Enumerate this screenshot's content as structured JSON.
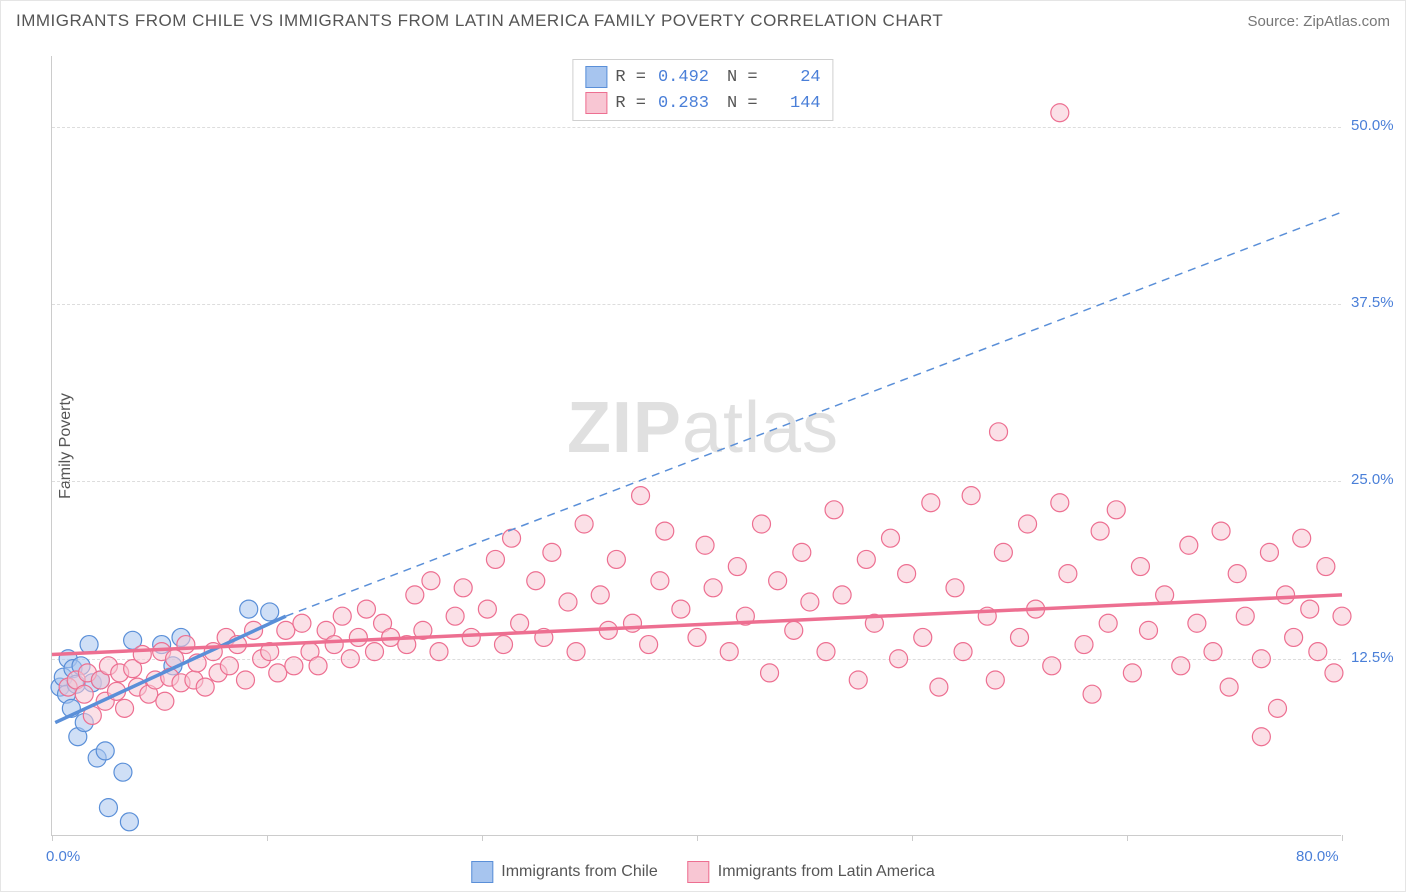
{
  "title": "IMMIGRANTS FROM CHILE VS IMMIGRANTS FROM LATIN AMERICA FAMILY POVERTY CORRELATION CHART",
  "source": "Source: ZipAtlas.com",
  "watermark_bold": "ZIP",
  "watermark_light": "atlas",
  "ylabel": "Family Poverty",
  "chart": {
    "type": "scatter",
    "xlim": [
      0,
      80
    ],
    "ylim": [
      0,
      55
    ],
    "x_tick_positions": [
      0,
      13.33,
      26.67,
      40,
      53.33,
      66.67,
      80
    ],
    "x_tick_labels": {
      "0": "0.0%",
      "80": "80.0%"
    },
    "y_tick_positions": [
      12.5,
      25,
      37.5,
      50
    ],
    "y_tick_labels": {
      "12.5": "12.5%",
      "25": "25.0%",
      "37.5": "37.5%",
      "50": "50.0%"
    },
    "grid_color": "#dddddd",
    "background_color": "#ffffff",
    "marker_radius": 9,
    "marker_opacity": 0.55
  },
  "series": [
    {
      "name": "Immigrants from Chile",
      "fill_color": "#a7c5ef",
      "stroke_color": "#5a8fd8",
      "R_label": "R =",
      "R": "0.492",
      "N_label": "N =",
      "N": "24",
      "trend": {
        "solid": {
          "x1": 0.2,
          "y1": 8.0,
          "x2": 14.5,
          "y2": 15.5
        },
        "dashed": {
          "x1": 14.5,
          "y1": 15.5,
          "x2": 80,
          "y2": 44.0
        }
      },
      "points": [
        [
          0.5,
          10.5
        ],
        [
          0.7,
          11.2
        ],
        [
          0.9,
          10.0
        ],
        [
          1.0,
          12.5
        ],
        [
          1.2,
          9.0
        ],
        [
          1.3,
          11.8
        ],
        [
          1.5,
          10.7
        ],
        [
          1.6,
          7.0
        ],
        [
          1.8,
          12.0
        ],
        [
          2.0,
          8.0
        ],
        [
          2.3,
          13.5
        ],
        [
          2.8,
          5.5
        ],
        [
          2.5,
          10.8
        ],
        [
          3.0,
          11.0
        ],
        [
          3.3,
          6.0
        ],
        [
          3.5,
          2.0
        ],
        [
          4.4,
          4.5
        ],
        [
          4.8,
          1.0
        ],
        [
          5.0,
          13.8
        ],
        [
          6.8,
          13.5
        ],
        [
          7.5,
          12.0
        ],
        [
          8.0,
          14.0
        ],
        [
          12.2,
          16.0
        ],
        [
          13.5,
          15.8
        ]
      ]
    },
    {
      "name": "Immigrants from Latin America",
      "fill_color": "#f8c6d3",
      "stroke_color": "#ed6f91",
      "R_label": "R =",
      "R": "0.283",
      "N_label": "N =",
      "N": "144",
      "trend": {
        "solid": {
          "x1": 0,
          "y1": 12.8,
          "x2": 80,
          "y2": 17.0
        }
      },
      "points": [
        [
          1,
          10.5
        ],
        [
          1.5,
          11
        ],
        [
          2,
          10
        ],
        [
          2.2,
          11.5
        ],
        [
          2.5,
          8.5
        ],
        [
          3,
          11
        ],
        [
          3.3,
          9.5
        ],
        [
          3.5,
          12
        ],
        [
          4,
          10.2
        ],
        [
          4.2,
          11.5
        ],
        [
          4.5,
          9
        ],
        [
          5,
          11.8
        ],
        [
          5.3,
          10.5
        ],
        [
          5.6,
          12.8
        ],
        [
          6,
          10
        ],
        [
          6.4,
          11
        ],
        [
          6.8,
          13
        ],
        [
          7,
          9.5
        ],
        [
          7.3,
          11.2
        ],
        [
          7.6,
          12.5
        ],
        [
          8,
          10.8
        ],
        [
          8.3,
          13.5
        ],
        [
          8.8,
          11
        ],
        [
          9,
          12.2
        ],
        [
          9.5,
          10.5
        ],
        [
          10,
          13
        ],
        [
          10.3,
          11.5
        ],
        [
          10.8,
          14
        ],
        [
          11,
          12
        ],
        [
          11.5,
          13.5
        ],
        [
          12,
          11
        ],
        [
          12.5,
          14.5
        ],
        [
          13,
          12.5
        ],
        [
          13.5,
          13
        ],
        [
          14,
          11.5
        ],
        [
          14.5,
          14.5
        ],
        [
          15,
          12
        ],
        [
          15.5,
          15
        ],
        [
          16,
          13
        ],
        [
          16.5,
          12
        ],
        [
          17,
          14.5
        ],
        [
          17.5,
          13.5
        ],
        [
          18,
          15.5
        ],
        [
          18.5,
          12.5
        ],
        [
          19,
          14
        ],
        [
          19.5,
          16
        ],
        [
          20,
          13
        ],
        [
          20.5,
          15
        ],
        [
          21,
          14
        ],
        [
          22,
          13.5
        ],
        [
          22.5,
          17
        ],
        [
          23,
          14.5
        ],
        [
          23.5,
          18
        ],
        [
          24,
          13
        ],
        [
          25,
          15.5
        ],
        [
          25.5,
          17.5
        ],
        [
          26,
          14
        ],
        [
          27,
          16
        ],
        [
          27.5,
          19.5
        ],
        [
          28,
          13.5
        ],
        [
          28.5,
          21
        ],
        [
          29,
          15
        ],
        [
          30,
          18
        ],
        [
          30.5,
          14
        ],
        [
          31,
          20
        ],
        [
          32,
          16.5
        ],
        [
          32.5,
          13
        ],
        [
          33,
          22
        ],
        [
          34,
          17
        ],
        [
          34.5,
          14.5
        ],
        [
          35,
          19.5
        ],
        [
          36,
          15
        ],
        [
          36.5,
          24
        ],
        [
          37,
          13.5
        ],
        [
          37.7,
          18
        ],
        [
          38,
          21.5
        ],
        [
          39,
          16
        ],
        [
          40,
          14
        ],
        [
          40.5,
          20.5
        ],
        [
          41,
          17.5
        ],
        [
          42,
          13
        ],
        [
          42.5,
          19
        ],
        [
          43,
          15.5
        ],
        [
          44,
          22
        ],
        [
          44.5,
          11.5
        ],
        [
          45,
          18
        ],
        [
          46,
          14.5
        ],
        [
          46.5,
          20
        ],
        [
          47,
          16.5
        ],
        [
          48,
          13
        ],
        [
          48.5,
          23
        ],
        [
          49,
          17
        ],
        [
          50,
          11
        ],
        [
          50.5,
          19.5
        ],
        [
          51,
          15
        ],
        [
          52,
          21
        ],
        [
          52.5,
          12.5
        ],
        [
          53,
          18.5
        ],
        [
          54,
          14
        ],
        [
          54.5,
          23.5
        ],
        [
          55,
          10.5
        ],
        [
          56,
          17.5
        ],
        [
          56.5,
          13
        ],
        [
          57,
          24
        ],
        [
          58,
          15.5
        ],
        [
          58.5,
          11
        ],
        [
          58.7,
          28.5
        ],
        [
          59,
          20
        ],
        [
          60,
          14
        ],
        [
          60.5,
          22
        ],
        [
          61,
          16
        ],
        [
          62,
          12
        ],
        [
          62.5,
          23.5
        ],
        [
          63,
          18.5
        ],
        [
          64,
          13.5
        ],
        [
          64.5,
          10
        ],
        [
          65,
          21.5
        ],
        [
          65.5,
          15
        ],
        [
          66,
          23
        ],
        [
          67,
          11.5
        ],
        [
          67.5,
          19
        ],
        [
          68,
          14.5
        ],
        [
          62.5,
          51
        ],
        [
          69,
          17
        ],
        [
          70,
          12
        ],
        [
          70.5,
          20.5
        ],
        [
          71,
          15
        ],
        [
          72,
          13
        ],
        [
          72.5,
          21.5
        ],
        [
          73,
          10.5
        ],
        [
          73.5,
          18.5
        ],
        [
          74,
          15.5
        ],
        [
          75,
          12.5
        ],
        [
          75.5,
          20
        ],
        [
          76,
          9
        ],
        [
          76.5,
          17
        ],
        [
          77,
          14
        ],
        [
          77.5,
          21
        ],
        [
          75,
          7
        ],
        [
          78,
          16
        ],
        [
          78.5,
          13
        ],
        [
          79,
          19
        ],
        [
          79.5,
          11.5
        ],
        [
          80,
          15.5
        ]
      ]
    }
  ],
  "legend_bottom": [
    {
      "label": "Immigrants from Chile",
      "fill": "#a7c5ef",
      "stroke": "#5a8fd8"
    },
    {
      "label": "Immigrants from Latin America",
      "fill": "#f8c6d3",
      "stroke": "#ed6f91"
    }
  ]
}
